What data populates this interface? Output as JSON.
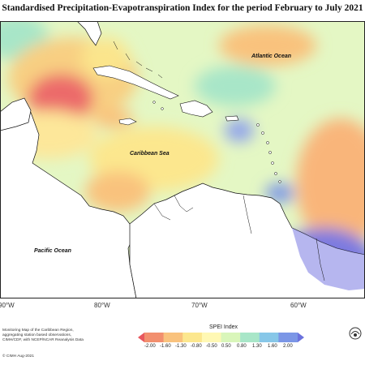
{
  "title": "Standardised Precipitation-Evapotranspiration Index for the period February to July 2021",
  "labels": {
    "atlantic": "Atlantic Ocean",
    "caribbean": "Caribbean Sea",
    "pacific": "Pacific Ocean"
  },
  "longitude_ticks": [
    "90°W",
    "80°W",
    "70°W",
    "60°W"
  ],
  "credits": "Monitoring Map of the Caribbean Region, aggregating station based observations, CIMH/CDF, with NCEP/NCAR Reanalysis Data",
  "copyright": "© CIMH Aug-2021",
  "legend": {
    "title": "SPEI Index",
    "ticks": [
      "-2.00",
      "-1.60",
      "-1.30",
      "-0.80",
      "-0.50",
      "0.50",
      "0.80",
      "1.30",
      "1.60",
      "2.00"
    ],
    "colors": [
      "#e8575e",
      "#f28f6e",
      "#f9c27d",
      "#fce78e",
      "#fff8b4",
      "#d9f6ba",
      "#a8e6c8",
      "#87c7e8",
      "#7b96e6",
      "#6b72dd"
    ]
  },
  "colors": {
    "land": "#ffffff",
    "neutral_sea": "#e4f7c4",
    "dry": "#f7c07a",
    "very_dry": "#ec6a6a",
    "wet": "#8fa3ec",
    "very_wet": "#6f6fd6"
  }
}
